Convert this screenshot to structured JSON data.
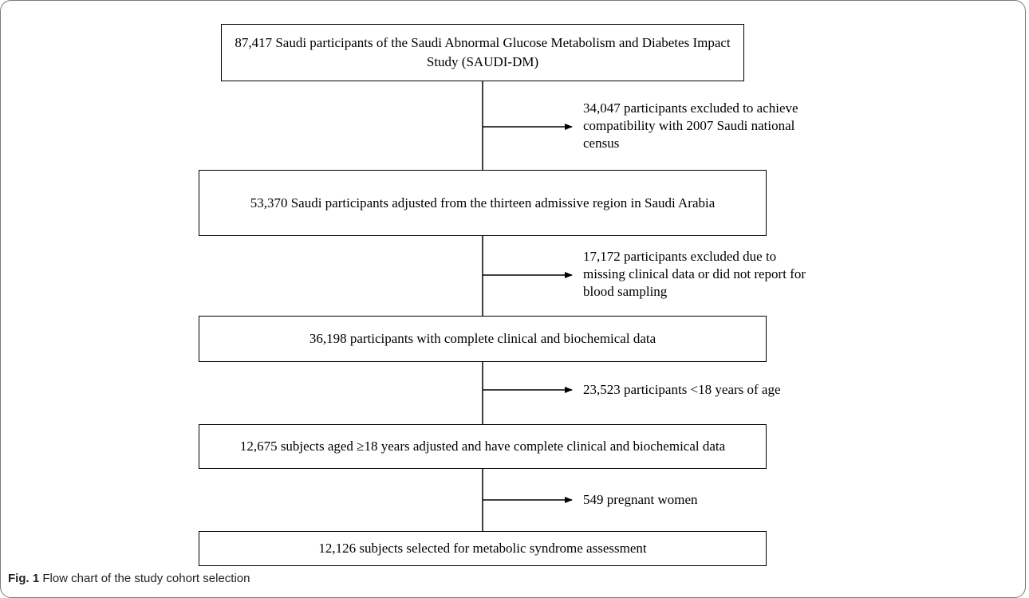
{
  "flowchart": {
    "boxes": [
      {
        "text": "87,417 Saudi participants of the Saudi Abnormal Glucose Metabolism and Diabetes Impact Study (SAUDI-DM)"
      },
      {
        "text": "53,370 Saudi participants adjusted from the thirteen admissive region in Saudi Arabia"
      },
      {
        "text": "36,198 participants with complete clinical and biochemical data"
      },
      {
        "text": "12,675 subjects aged ≥18 years adjusted and have complete clinical and biochemical data"
      },
      {
        "text": "12,126 subjects selected for metabolic syndrome assessment"
      }
    ],
    "exclusions": [
      {
        "text": "34,047 participants excluded to achieve compatibility with 2007 Saudi national census"
      },
      {
        "text": "17,172 participants excluded due to missing clinical data or did not report for blood sampling"
      },
      {
        "text": "23,523 participants <18 years of age"
      },
      {
        "text": "549 pregnant women"
      }
    ]
  },
  "caption": {
    "label": "Fig. 1",
    "text": "Flow chart of the study cohort selection"
  }
}
